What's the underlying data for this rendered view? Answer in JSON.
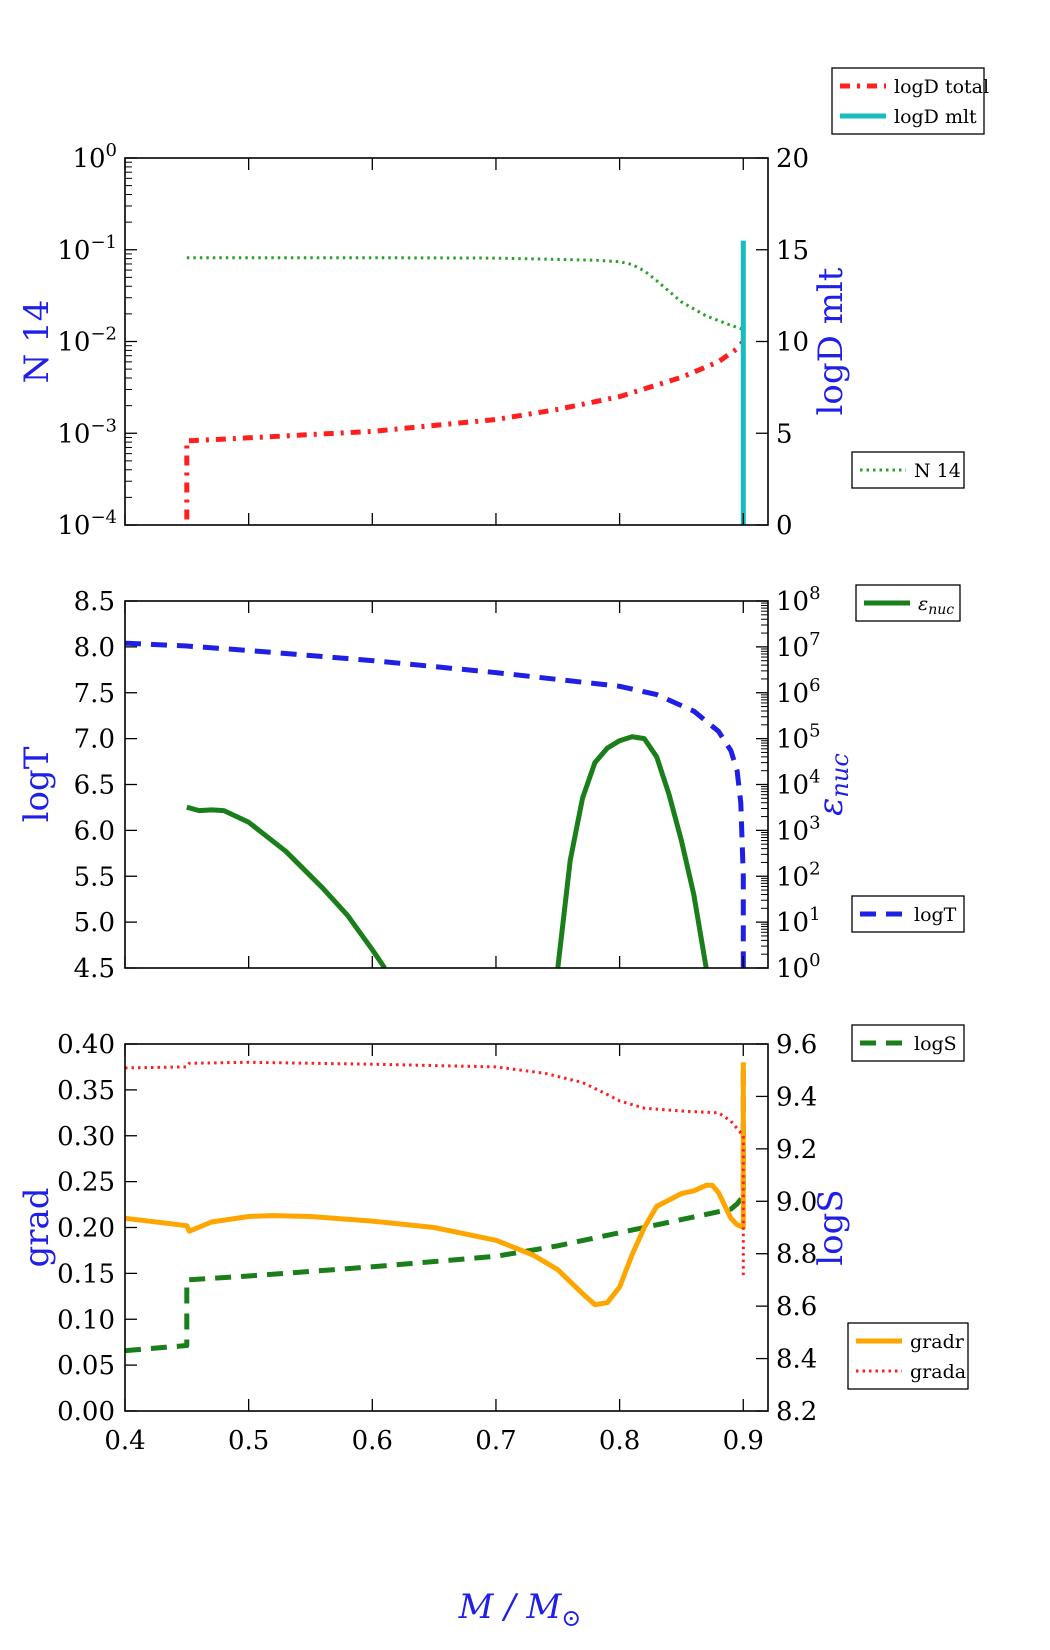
{
  "figure": {
    "xlabel_main": "M / M",
    "xlabel_sub": "⊙",
    "xlabel_color": "#1f1fe6"
  },
  "chart_data": [
    {
      "type": "line",
      "x_range": [
        0.4,
        0.92
      ],
      "x_ticks": [
        0.4,
        0.5,
        0.6,
        0.7,
        0.8,
        0.9
      ],
      "left_axis": {
        "label": "N 14",
        "scale": "log",
        "range": [
          0.0001,
          1
        ],
        "ticks": [
          0.0001,
          0.001,
          0.01,
          0.1,
          1
        ],
        "tick_labels": [
          "10",
          "10",
          "10",
          "10",
          "10"
        ],
        "tick_exps": [
          "−4",
          "−3",
          "−2",
          "−1",
          "0"
        ],
        "color": "#1f1fe6"
      },
      "right_axis": {
        "label": "logD mlt",
        "scale": "linear",
        "range": [
          0,
          20
        ],
        "ticks": [
          0,
          5,
          10,
          15,
          20
        ],
        "tick_labels": [
          "0",
          "5",
          "10",
          "15",
          "20"
        ],
        "color": "#1f1fe6"
      },
      "series": [
        {
          "name": "N 14",
          "axis": "left",
          "style": "dotted",
          "color": "#2ca02c",
          "x": [
            0.45,
            0.5,
            0.6,
            0.7,
            0.78,
            0.8,
            0.81,
            0.82,
            0.83,
            0.85,
            0.87,
            0.89,
            0.9
          ],
          "y": [
            0.082,
            0.082,
            0.082,
            0.081,
            0.077,
            0.074,
            0.069,
            0.059,
            0.046,
            0.027,
            0.019,
            0.015,
            0.0135
          ]
        },
        {
          "name": "logD total",
          "axis": "right",
          "style": "dashdot",
          "color": "#ff1f1f",
          "x": [
            0.45,
            0.45,
            0.455,
            0.5,
            0.6,
            0.7,
            0.75,
            0.8,
            0.85,
            0.88,
            0.895,
            0.9
          ],
          "y": [
            0.3,
            4.6,
            4.6,
            4.75,
            5.1,
            5.75,
            6.3,
            7.0,
            8.05,
            8.9,
            9.6,
            10.0
          ]
        },
        {
          "name": "logD mlt",
          "axis": "right",
          "style": "solid",
          "color": "#17bdbd",
          "x": [
            0.9,
            0.9
          ],
          "y": [
            0,
            15.5
          ]
        }
      ],
      "legends": [
        {
          "placement": "above-right",
          "entries": [
            "logD total",
            "logD mlt"
          ]
        },
        {
          "placement": "lower-right",
          "entries": [
            "N 14"
          ]
        }
      ]
    },
    {
      "type": "line",
      "x_range": [
        0.4,
        0.92
      ],
      "x_ticks": [
        0.4,
        0.5,
        0.6,
        0.7,
        0.8,
        0.9
      ],
      "left_axis": {
        "label": "logT",
        "scale": "linear",
        "range": [
          4.5,
          8.5
        ],
        "ticks": [
          4.5,
          5.0,
          5.5,
          6.0,
          6.5,
          7.0,
          7.5,
          8.0,
          8.5
        ],
        "tick_labels": [
          "4.5",
          "5.0",
          "5.5",
          "6.0",
          "6.5",
          "7.0",
          "7.5",
          "8.0",
          "8.5"
        ],
        "color": "#1f1fe6"
      },
      "right_axis": {
        "label": "ε",
        "label_sub": "nuc",
        "scale": "log",
        "range": [
          1,
          100000000
        ],
        "ticks": [
          1,
          10,
          100,
          1000,
          10000,
          100000,
          1000000,
          10000000,
          100000000
        ],
        "tick_labels": [
          "10",
          "10",
          "10",
          "10",
          "10",
          "10",
          "10",
          "10",
          "10"
        ],
        "tick_exps": [
          "0",
          "1",
          "2",
          "3",
          "4",
          "5",
          "6",
          "7",
          "8"
        ],
        "color": "#1f1fe6"
      },
      "series": [
        {
          "name": "logT",
          "axis": "left",
          "style": "dashed",
          "color": "#1f1fe6",
          "x": [
            0.4,
            0.45,
            0.5,
            0.6,
            0.7,
            0.8,
            0.83,
            0.86,
            0.88,
            0.89,
            0.895,
            0.898,
            0.9,
            0.9
          ],
          "y": [
            8.04,
            8.01,
            7.96,
            7.85,
            7.72,
            7.57,
            7.48,
            7.3,
            7.08,
            6.87,
            6.65,
            6.3,
            5.5,
            4.5
          ]
        },
        {
          "name": "ε nuc",
          "axis": "right",
          "style": "solid",
          "color": "#1a7f1a",
          "x": [
            0.45,
            0.46,
            0.47,
            0.48,
            0.5,
            0.53,
            0.56,
            0.58,
            0.6,
            0.61
          ],
          "y": [
            3200,
            2700,
            2800,
            2700,
            1500,
            350,
            55,
            14,
            2.5,
            1
          ]
        },
        {
          "name": "ε nuc",
          "axis": "right",
          "style": "solid",
          "color": "#1a7f1a",
          "x": [
            0.75,
            0.76,
            0.77,
            0.78,
            0.79,
            0.8,
            0.81,
            0.82,
            0.83,
            0.84,
            0.85,
            0.86,
            0.87
          ],
          "y": [
            1,
            220,
            5000,
            30000,
            62000,
            90000,
            110000,
            100000,
            40000,
            6000,
            600,
            40,
            1
          ]
        }
      ],
      "legends": [
        {
          "placement": "upper-right",
          "entries": [
            "ε nuc"
          ]
        },
        {
          "placement": "lower-right",
          "entries": [
            "logT"
          ]
        }
      ]
    },
    {
      "type": "line",
      "x_range": [
        0.4,
        0.92
      ],
      "x_ticks": [
        0.4,
        0.5,
        0.6,
        0.7,
        0.8,
        0.9
      ],
      "x_tick_labels": [
        "0.4",
        "0.5",
        "0.6",
        "0.7",
        "0.8",
        "0.9"
      ],
      "left_axis": {
        "label": "grad",
        "scale": "linear",
        "range": [
          0,
          0.4
        ],
        "ticks": [
          0,
          0.05,
          0.1,
          0.15,
          0.2,
          0.25,
          0.3,
          0.35,
          0.4
        ],
        "tick_labels": [
          "0.00",
          "0.05",
          "0.10",
          "0.15",
          "0.20",
          "0.25",
          "0.30",
          "0.35",
          "0.40"
        ],
        "color": "#1f1fe6"
      },
      "right_axis": {
        "label": "logS",
        "scale": "linear",
        "range": [
          8.2,
          9.6
        ],
        "ticks": [
          8.2,
          8.4,
          8.6,
          8.8,
          9.0,
          9.2,
          9.4,
          9.6
        ],
        "tick_labels": [
          "8.2",
          "8.4",
          "8.6",
          "8.8",
          "9.0",
          "9.2",
          "9.4",
          "9.6"
        ],
        "color": "#1f1fe6"
      },
      "series": [
        {
          "name": "logS",
          "axis": "right",
          "style": "dashed",
          "color": "#1a7f1a",
          "x": [
            0.4,
            0.45,
            0.45,
            0.5,
            0.6,
            0.7,
            0.75,
            0.8,
            0.85,
            0.89,
            0.895,
            0.9,
            0.9
          ],
          "y": [
            8.43,
            8.45,
            8.7,
            8.715,
            8.75,
            8.79,
            8.83,
            8.88,
            8.93,
            8.97,
            8.99,
            9.02,
            9.5
          ]
        },
        {
          "name": "gradr",
          "axis": "left",
          "style": "solid",
          "color": "#ffa500",
          "x": [
            0.4,
            0.45,
            0.452,
            0.47,
            0.5,
            0.52,
            0.55,
            0.6,
            0.65,
            0.7,
            0.73,
            0.75,
            0.77,
            0.78,
            0.79,
            0.8,
            0.81,
            0.82,
            0.83,
            0.84,
            0.85,
            0.86,
            0.87,
            0.875,
            0.88,
            0.885,
            0.89,
            0.895,
            0.9,
            0.9
          ],
          "y": [
            0.21,
            0.202,
            0.196,
            0.206,
            0.212,
            0.213,
            0.212,
            0.207,
            0.2,
            0.186,
            0.17,
            0.154,
            0.128,
            0.116,
            0.118,
            0.135,
            0.17,
            0.2,
            0.223,
            0.23,
            0.237,
            0.24,
            0.246,
            0.246,
            0.238,
            0.224,
            0.21,
            0.203,
            0.2,
            0.38
          ]
        },
        {
          "name": "grada",
          "axis": "left",
          "style": "dotted",
          "color": "#ff1f1f",
          "x": [
            0.4,
            0.45,
            0.452,
            0.5,
            0.6,
            0.7,
            0.74,
            0.77,
            0.79,
            0.8,
            0.82,
            0.85,
            0.88,
            0.89,
            0.9,
            0.9
          ],
          "y": [
            0.374,
            0.375,
            0.379,
            0.38,
            0.378,
            0.375,
            0.368,
            0.358,
            0.345,
            0.338,
            0.33,
            0.327,
            0.325,
            0.316,
            0.3,
            0.145
          ]
        }
      ],
      "legends": [
        {
          "placement": "upper-right",
          "entries": [
            "logS"
          ]
        },
        {
          "placement": "lower-right",
          "entries": [
            "gradr",
            "grada"
          ]
        }
      ]
    }
  ]
}
